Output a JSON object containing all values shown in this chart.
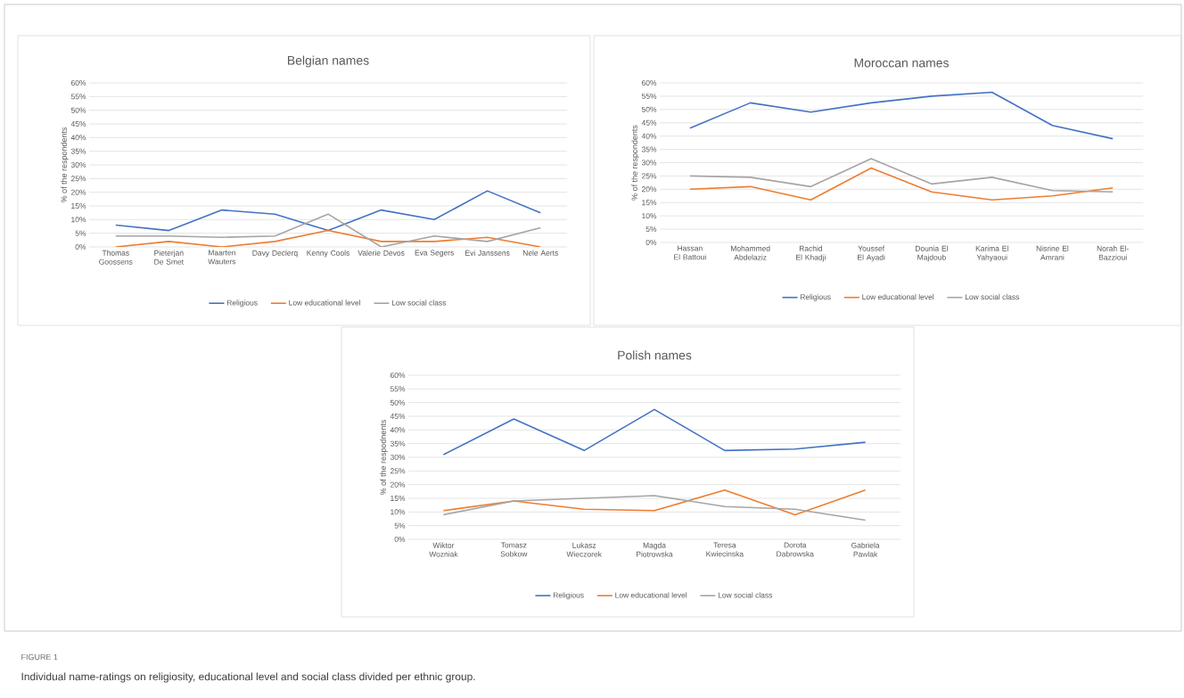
{
  "chart_data": [
    {
      "type": "line",
      "title": "Belgian names",
      "ylabel": "% of the respondents",
      "categories": [
        "Thomas Goossens",
        "Pieterjan De Smet",
        "Maarten Wauters",
        "Davy Declerq",
        "Kenny Cools",
        "Valerie Devos",
        "Eva Segers",
        "Evi Janssens",
        "Nele Aerts"
      ],
      "series": [
        {
          "name": "Religious",
          "color": "#4472c4",
          "values": [
            8,
            6,
            13.5,
            12,
            6,
            13.5,
            10,
            20.5,
            12.5
          ]
        },
        {
          "name": "Low educational level",
          "color": "#ed7d31",
          "values": [
            0,
            2,
            0,
            2,
            6,
            2,
            2,
            3.5,
            0
          ]
        },
        {
          "name": "Low social class",
          "color": "#a5a5a5",
          "values": [
            4,
            4,
            3.5,
            4,
            12,
            0,
            4,
            2,
            7
          ]
        }
      ],
      "ylim": [
        0,
        60
      ],
      "yticks": [
        {
          "value": 0,
          "label": "0%"
        },
        {
          "value": 5,
          "label": "5%"
        },
        {
          "value": 10,
          "label": "10%"
        },
        {
          "value": 15,
          "label": "15%"
        },
        {
          "value": 20,
          "label": "20%"
        },
        {
          "value": 25,
          "label": "25%"
        },
        {
          "value": 30,
          "label": "30%"
        },
        {
          "value": 35,
          "label": "35%"
        },
        {
          "value": 40,
          "label": "40%"
        },
        {
          "value": 45,
          "label": "45%"
        },
        {
          "value": 50,
          "label": "50%"
        },
        {
          "value": 55,
          "label": "55%"
        },
        {
          "value": 60,
          "label": "60%"
        }
      ],
      "grid": "y",
      "legend": "bottom",
      "marker": "none",
      "line_style": "solid"
    },
    {
      "type": "line",
      "title": "Moroccan names",
      "ylabel": "% of the respondents",
      "categories": [
        "Hassan El Battoui",
        "Mohammed Abdelaziz",
        "Rachid El Khadji",
        "Youssef El Ayadi",
        "Dounia El Majdoub",
        "Karima El Yahyaoui",
        "Nisrine El Amrani",
        "Norah El-Bazzioui"
      ],
      "series": [
        {
          "name": "Religious",
          "color": "#4472c4",
          "values": [
            43,
            52.5,
            49,
            52.5,
            55,
            56.5,
            44,
            39
          ]
        },
        {
          "name": "Low educational level",
          "color": "#ed7d31",
          "values": [
            20,
            21,
            16,
            28,
            19,
            16,
            17.5,
            20.5
          ]
        },
        {
          "name": "Low social class",
          "color": "#a5a5a5",
          "values": [
            25,
            24.5,
            21,
            31.5,
            22,
            24.5,
            19.5,
            19
          ]
        }
      ],
      "ylim": [
        0,
        60
      ],
      "yticks": [
        {
          "value": 0,
          "label": "0%"
        },
        {
          "value": 5,
          "label": "5%"
        },
        {
          "value": 10,
          "label": "10%"
        },
        {
          "value": 15,
          "label": "15%"
        },
        {
          "value": 20,
          "label": "20%"
        },
        {
          "value": 25,
          "label": "25%"
        },
        {
          "value": 30,
          "label": "30%"
        },
        {
          "value": 35,
          "label": "35%"
        },
        {
          "value": 40,
          "label": "40%"
        },
        {
          "value": 45,
          "label": "45%"
        },
        {
          "value": 50,
          "label": "50%"
        },
        {
          "value": 55,
          "label": "55%"
        },
        {
          "value": 60,
          "label": "60%"
        }
      ],
      "grid": "y",
      "legend": "bottom",
      "marker": "none",
      "line_style": "solid"
    },
    {
      "type": "line",
      "title": "Polish names",
      "ylabel": "% of the respodnents",
      "categories": [
        "Wiktor Wozniak",
        "Tomasz Sobkow",
        "Lukasz Wieczorek",
        "Magda Piotrowska",
        "Teresa Kwiecinska",
        "Dorota Dabrowska",
        "Gabriela Pawlak"
      ],
      "series": [
        {
          "name": "Religious",
          "color": "#4472c4",
          "values": [
            31,
            44,
            32.5,
            47.5,
            32.5,
            33,
            35.5
          ]
        },
        {
          "name": "Low educational level",
          "color": "#ed7d31",
          "values": [
            10.5,
            14,
            11,
            10.5,
            18,
            9,
            18
          ]
        },
        {
          "name": "Low social class",
          "color": "#a5a5a5",
          "values": [
            9,
            14,
            15,
            16,
            12,
            11,
            7
          ]
        }
      ],
      "ylim": [
        0,
        60
      ],
      "yticks": [
        {
          "value": 0,
          "label": "0%"
        },
        {
          "value": 5,
          "label": "5%"
        },
        {
          "value": 10,
          "label": "10%"
        },
        {
          "value": 15,
          "label": "15%"
        },
        {
          "value": 20,
          "label": "20%"
        },
        {
          "value": 25,
          "label": "25%"
        },
        {
          "value": 30,
          "label": "30%"
        },
        {
          "value": 35,
          "label": "35%"
        },
        {
          "value": 40,
          "label": "40%"
        },
        {
          "value": 45,
          "label": "45%"
        },
        {
          "value": 50,
          "label": "50%"
        },
        {
          "value": 55,
          "label": "55%"
        },
        {
          "value": 60,
          "label": "60%"
        }
      ],
      "grid": "y",
      "legend": "bottom",
      "marker": "none",
      "line_style": "solid",
      "annotations": [
        "FIGURE 1",
        "Individual name-ratings on religiosity, educational level and social class divided per ethnic group."
      ]
    }
  ]
}
